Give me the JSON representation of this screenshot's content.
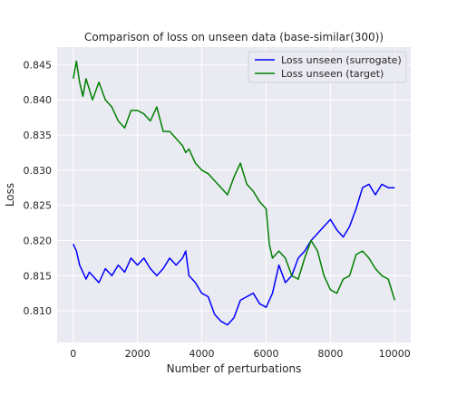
{
  "chart_data": {
    "type": "line",
    "title": "Comparison of loss on unseen data (base-similar(300))",
    "xlabel": "Number of perturbations",
    "ylabel": "Loss",
    "xlim": [
      -500,
      10500
    ],
    "ylim": [
      0.8055,
      0.8475
    ],
    "xticks": [
      0,
      2000,
      4000,
      6000,
      8000,
      10000
    ],
    "xtick_labels": [
      "0",
      "2000",
      "4000",
      "6000",
      "8000",
      "10000"
    ],
    "yticks": [
      0.81,
      0.815,
      0.82,
      0.825,
      0.83,
      0.835,
      0.84,
      0.845
    ],
    "ytick_labels": [
      "0.810",
      "0.815",
      "0.820",
      "0.825",
      "0.830",
      "0.835",
      "0.840",
      "0.845"
    ],
    "grid": true,
    "legend_position": "top-right",
    "series": [
      {
        "name": "Loss unseen (surrogate)",
        "color": "#0000ff",
        "x": [
          0,
          100,
          200,
          300,
          400,
          500,
          600,
          800,
          1000,
          1200,
          1400,
          1600,
          1800,
          2000,
          2200,
          2400,
          2600,
          2800,
          3000,
          3200,
          3400,
          3500,
          3600,
          3800,
          4000,
          4200,
          4400,
          4600,
          4800,
          5000,
          5200,
          5400,
          5600,
          5800,
          6000,
          6200,
          6400,
          6600,
          6800,
          7000,
          7200,
          7400,
          7600,
          7800,
          8000,
          8200,
          8400,
          8600,
          8800,
          9000,
          9200,
          9400,
          9600,
          9800,
          10000
        ],
        "y": [
          0.8195,
          0.8185,
          0.8165,
          0.8155,
          0.8145,
          0.8155,
          0.815,
          0.814,
          0.816,
          0.815,
          0.8165,
          0.8155,
          0.8175,
          0.8165,
          0.8175,
          0.816,
          0.815,
          0.816,
          0.8175,
          0.8165,
          0.8175,
          0.8185,
          0.815,
          0.814,
          0.8125,
          0.812,
          0.8095,
          0.8085,
          0.808,
          0.809,
          0.8115,
          0.812,
          0.8125,
          0.811,
          0.8105,
          0.8125,
          0.8165,
          0.814,
          0.815,
          0.8175,
          0.8185,
          0.82,
          0.821,
          0.822,
          0.823,
          0.8215,
          0.8205,
          0.822,
          0.8245,
          0.8275,
          0.828,
          0.8265,
          0.828,
          0.8275,
          0.8275
        ]
      },
      {
        "name": "Loss unseen (target)",
        "color": "#008000",
        "x": [
          0,
          100,
          200,
          300,
          400,
          500,
          600,
          800,
          1000,
          1200,
          1400,
          1600,
          1800,
          2000,
          2200,
          2400,
          2600,
          2800,
          3000,
          3200,
          3400,
          3500,
          3600,
          3800,
          4000,
          4200,
          4400,
          4600,
          4800,
          5000,
          5200,
          5400,
          5600,
          5800,
          6000,
          6100,
          6200,
          6400,
          6600,
          6800,
          7000,
          7200,
          7400,
          7600,
          7800,
          8000,
          8200,
          8400,
          8600,
          8800,
          9000,
          9200,
          9400,
          9600,
          9800,
          10000
        ],
        "y": [
          0.843,
          0.8455,
          0.8425,
          0.8405,
          0.843,
          0.8415,
          0.84,
          0.8425,
          0.84,
          0.839,
          0.837,
          0.836,
          0.8385,
          0.8385,
          0.838,
          0.837,
          0.839,
          0.8355,
          0.8355,
          0.8345,
          0.8335,
          0.8325,
          0.833,
          0.831,
          0.83,
          0.8295,
          0.8285,
          0.8275,
          0.8265,
          0.829,
          0.831,
          0.828,
          0.827,
          0.8255,
          0.8245,
          0.8195,
          0.8175,
          0.8185,
          0.8175,
          0.815,
          0.8145,
          0.8175,
          0.82,
          0.8185,
          0.815,
          0.813,
          0.8125,
          0.8145,
          0.815,
          0.818,
          0.8185,
          0.8175,
          0.816,
          0.815,
          0.8145,
          0.8115
        ]
      }
    ]
  }
}
